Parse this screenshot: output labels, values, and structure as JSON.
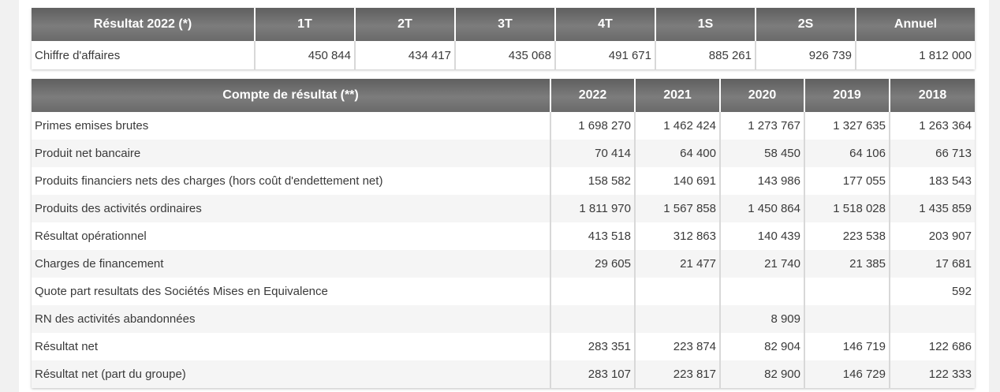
{
  "results_2022": {
    "headers": [
      "Résultat 2022 (*)",
      "1T",
      "2T",
      "3T",
      "4T",
      "1S",
      "2S",
      "Annuel"
    ],
    "rows": [
      {
        "label": "Chiffre d'affaires",
        "values": [
          "450 844",
          "434 417",
          "435 068",
          "491 671",
          "885 261",
          "926 739",
          "1 812 000"
        ]
      }
    ]
  },
  "income_statement": {
    "headers": [
      "Compte de résultat (**)",
      "2022",
      "2021",
      "2020",
      "2019",
      "2018"
    ],
    "rows": [
      {
        "label": "Primes emises brutes",
        "values": [
          "1 698 270",
          "1 462 424",
          "1 273 767",
          "1 327 635",
          "1 263 364"
        ]
      },
      {
        "label": "Produit net bancaire",
        "values": [
          "70 414",
          "64 400",
          "58 450",
          "64 106",
          "66 713"
        ]
      },
      {
        "label": "Produits financiers nets des charges (hors coût d'endettement net)",
        "values": [
          "158 582",
          "140 691",
          "143 986",
          "177 055",
          "183 543"
        ]
      },
      {
        "label": "Produits des activités ordinaires",
        "values": [
          "1 811 970",
          "1 567 858",
          "1 450 864",
          "1 518 028",
          "1 435 859"
        ]
      },
      {
        "label": "Résultat opérationnel",
        "values": [
          "413 518",
          "312 863",
          "140 439",
          "223 538",
          "203 907"
        ]
      },
      {
        "label": "Charges de financement",
        "values": [
          "29 605",
          "21 477",
          "21 740",
          "21 385",
          "17 681"
        ]
      },
      {
        "label": "Quote part resultats des Sociétés Mises en Equivalence",
        "values": [
          "",
          "",
          "",
          "",
          "592"
        ]
      },
      {
        "label": "RN des activités abandonnées",
        "values": [
          "",
          "",
          "8 909",
          "",
          ""
        ]
      },
      {
        "label": "Résultat net",
        "values": [
          "283 351",
          "223 874",
          "82 904",
          "146 719",
          "122 686"
        ]
      },
      {
        "label": "Résultat net (part du groupe)",
        "values": [
          "283 107",
          "223 817",
          "82 900",
          "146 729",
          "122 333"
        ]
      }
    ]
  },
  "colors": {
    "header_bg": "#6d6d6d",
    "header_text": "#ffffff",
    "row_alt": "#f5f5f5"
  }
}
